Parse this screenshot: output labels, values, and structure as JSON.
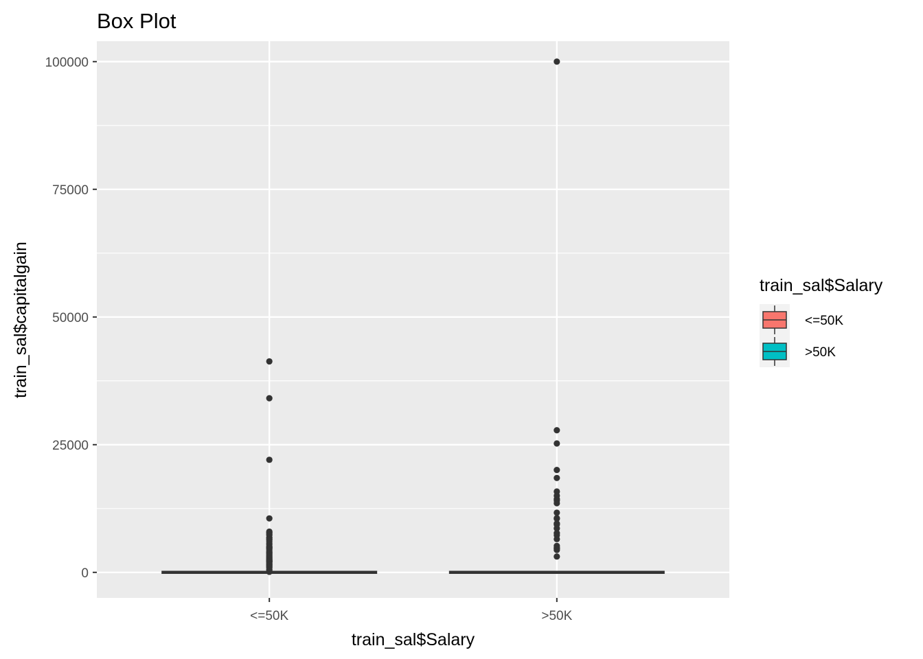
{
  "chart_data": {
    "type": "box",
    "title": "Box Plot",
    "xlabel": "train_sal$Salary",
    "ylabel": "train_sal$capitalgain",
    "categories": [
      "<=50K",
      ">50K"
    ],
    "ylim": [
      -5000,
      104000
    ],
    "yticks": [
      0,
      25000,
      50000,
      75000,
      100000
    ],
    "grid": true,
    "legend": {
      "title": "train_sal$Salary",
      "position": "right",
      "entries": [
        {
          "label": "<=50K",
          "color": "#F8766D"
        },
        {
          "label": ">50K",
          "color": "#00BFC4"
        }
      ]
    },
    "series": [
      {
        "category": "<=50K",
        "color": "#F8766D",
        "min": 0,
        "q1": 0,
        "median": 0,
        "q3": 0,
        "max": 0,
        "outliers": [
          41310,
          34095,
          22040,
          10566,
          7978,
          7896,
          7688,
          7443,
          7298,
          6849,
          6723,
          6497,
          6418,
          6097,
          5721,
          5455,
          5060,
          4865,
          4787,
          4650,
          4416,
          4101,
          3908,
          3818,
          3674,
          3464,
          3325,
          3103,
          2993,
          2829,
          2653,
          2597,
          2414,
          2346,
          2228,
          2176,
          2105,
          2036,
          1848,
          1639,
          1471,
          1409,
          1173,
          1055,
          914,
          594,
          401,
          114
        ]
      },
      {
        "category": ">50K",
        "color": "#00BFC4",
        "min": 0,
        "q1": 0,
        "median": 0,
        "q3": 0,
        "max": 0,
        "outliers": [
          99999,
          27828,
          25236,
          20051,
          18481,
          15831,
          15024,
          14344,
          14084,
          13550,
          11678,
          10605,
          10520,
          9562,
          9386,
          8614,
          7688,
          7298,
          6514,
          5178,
          4787,
          4687,
          4386,
          3103
        ]
      }
    ]
  }
}
